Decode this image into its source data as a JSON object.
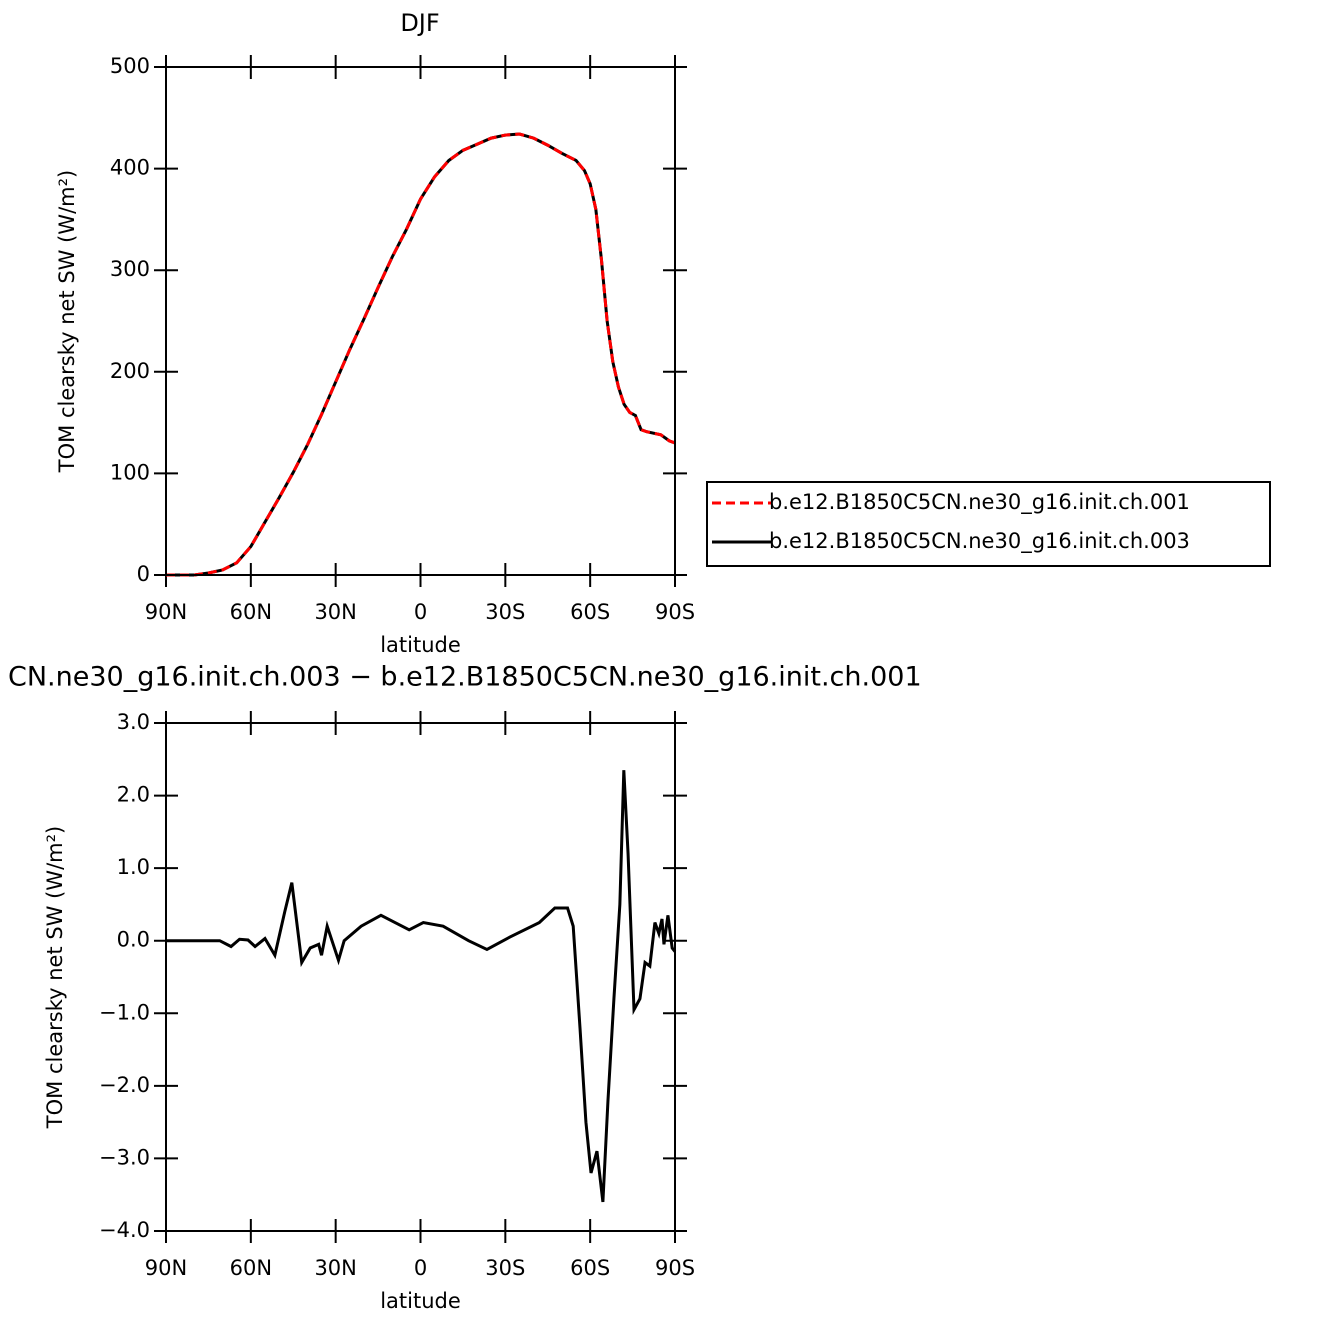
{
  "chart_data": [
    {
      "type": "line",
      "title": "DJF",
      "x_label": "latitude",
      "y_label": "TOM clearsky net SW (W/m²)",
      "x": [
        90,
        85,
        80,
        75,
        70,
        65,
        60,
        55,
        50,
        45,
        40,
        35,
        30,
        25,
        20,
        15,
        10,
        5,
        0,
        -5,
        -10,
        -15,
        -20,
        -25,
        -30,
        -35,
        -40,
        -45,
        -50,
        -55,
        -58,
        -60,
        -62,
        -64,
        -66,
        -68,
        -70,
        -72,
        -74,
        -76,
        -78,
        -80,
        -85,
        -88,
        -90
      ],
      "series": [
        {
          "name": "b.e12.B1850C5CN.ne30_g16.init.ch.001",
          "color": "#ff0000",
          "line_style": "dashed",
          "values": [
            0,
            0,
            0,
            2,
            5,
            12,
            28,
            52,
            76,
            101,
            128,
            158,
            190,
            222,
            252,
            283,
            313,
            340,
            370,
            392,
            408,
            418,
            424,
            430,
            433,
            434,
            430,
            423,
            415,
            408,
            398,
            385,
            360,
            310,
            250,
            210,
            185,
            168,
            160,
            157,
            143,
            141,
            138,
            132,
            130
          ]
        },
        {
          "name": "b.e12.B1850C5CN.ne30_g16.init.ch.003",
          "color": "#000000",
          "line_style": "solid",
          "values": [
            0,
            0,
            0,
            2,
            5,
            12,
            28,
            52,
            76,
            101,
            128,
            158,
            190,
            222,
            252,
            283,
            313,
            340,
            370,
            392,
            408,
            418,
            424,
            430,
            433,
            434,
            430,
            423,
            415,
            408,
            398,
            385,
            360,
            310,
            250,
            210,
            185,
            168,
            160,
            157,
            143,
            141,
            138,
            132,
            130
          ]
        }
      ],
      "xlim": [
        90,
        -90
      ],
      "xticks": [
        {
          "value": 90,
          "label": "90N"
        },
        {
          "value": 60,
          "label": "60N"
        },
        {
          "value": 30,
          "label": "30N"
        },
        0,
        {
          "value": -30,
          "label": "30S"
        },
        {
          "value": -60,
          "label": "60S"
        },
        {
          "value": -90,
          "label": "90S"
        }
      ],
      "ylim": [
        0,
        500
      ],
      "yticks": [
        0,
        100,
        200,
        300,
        400,
        500
      ],
      "legend": "right"
    },
    {
      "type": "line",
      "title": "CN.ne30_g16.init.ch.003 − b.e12.B1850C5CN.ne30_g16.init.ch.001",
      "x_label": "latitude",
      "y_label": "TOM clearsky net SW (W/m²)",
      "x": [
        90,
        80,
        75,
        71,
        67,
        64,
        61,
        58.5,
        55,
        51.5,
        48,
        45.5,
        42,
        39,
        36,
        35,
        33,
        29,
        27,
        21,
        14,
        9,
        4,
        -1,
        -8,
        -17,
        -23.5,
        -31.6,
        -42,
        -47.5,
        -52,
        -54,
        -56.4,
        -58.5,
        -60.3,
        -62.4,
        -64.5,
        -66.3,
        -68.4,
        -70.5,
        -71.9,
        -73.4,
        -75.5,
        -77.6,
        -79.4,
        -81.1,
        -82.9,
        -84.3,
        -85.4,
        -86.1,
        -87.5,
        -89,
        -90
      ],
      "values": [
        0,
        0,
        0,
        0,
        -0.08,
        0.02,
        0.01,
        -0.08,
        0.03,
        -0.2,
        0.4,
        0.8,
        -0.3,
        -0.1,
        -0.05,
        -0.2,
        0.2,
        -0.27,
        0,
        0.2,
        0.35,
        0.25,
        0.15,
        0.25,
        0.2,
        0,
        -0.12,
        0.05,
        0.25,
        0.45,
        0.45,
        0.2,
        -1.2,
        -2.5,
        -3.2,
        -2.9,
        -3.6,
        -2.2,
        -0.8,
        0.5,
        2.35,
        1.2,
        -0.95,
        -0.8,
        -0.3,
        -0.35,
        0.25,
        0.1,
        0.3,
        -0.05,
        0.35,
        -0.1,
        -0.15
      ],
      "color": "#000000",
      "xlim": [
        90,
        -90
      ],
      "xticks": [
        {
          "value": 90,
          "label": "90N"
        },
        {
          "value": 60,
          "label": "60N"
        },
        {
          "value": 30,
          "label": "30N"
        },
        0,
        {
          "value": -30,
          "label": "30S"
        },
        {
          "value": -60,
          "label": "60S"
        },
        {
          "value": -90,
          "label": "90S"
        }
      ],
      "ylim": [
        -4,
        3
      ],
      "yticks": [
        {
          "value": 3,
          "label": "3.0"
        },
        {
          "value": 2,
          "label": "2.0"
        },
        {
          "value": 1,
          "label": "1.0"
        },
        {
          "value": 0,
          "label": "0.0"
        },
        {
          "value": -1,
          "label": "−1.0"
        },
        {
          "value": -2,
          "label": "−2.0"
        },
        {
          "value": -3,
          "label": "−3.0"
        },
        {
          "value": -4,
          "label": "−4.0"
        }
      ]
    }
  ]
}
